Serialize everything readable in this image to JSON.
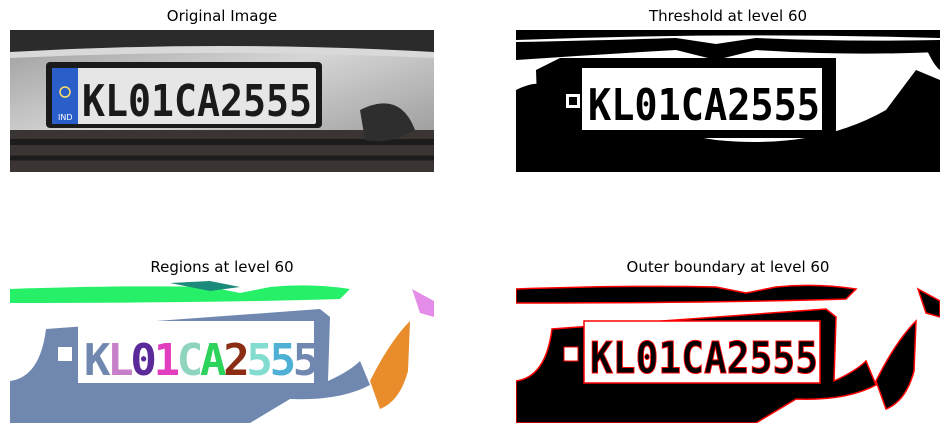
{
  "panels": [
    {
      "title": "Original Image",
      "plate_text": "KL01CA2555",
      "badge": "IND"
    },
    {
      "title": "Threshold at level 60",
      "plate_text": "KL01CA2555"
    },
    {
      "title": "Regions at level 60",
      "region_colors": [
        "#7088b0",
        "#c77fc9",
        "#5a2a9a",
        "#e23dbf",
        "#8fd4bf",
        "#2dd35b",
        "#8b2c15",
        "#82dccf",
        "#4fb0d6"
      ]
    },
    {
      "title": "Outer boundary at level 60",
      "plate_text": "KL01CA2555",
      "boundary_color": "#ff0000"
    }
  ],
  "colors": {
    "plate_blue": "#2a5ec9",
    "car_silver": "#bdbdbd",
    "region_body": "#7088b0",
    "region_top": "#25f068",
    "region_orange": "#e88c2c",
    "region_pink": "#e48de8"
  }
}
